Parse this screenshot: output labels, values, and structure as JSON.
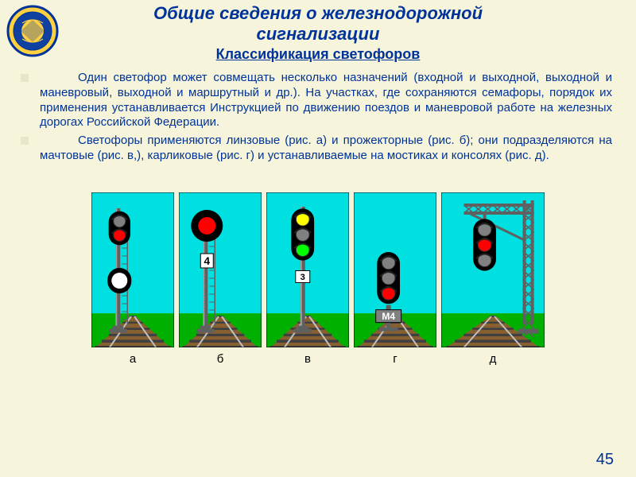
{
  "title_line1": "Общие сведения о железнодорожной",
  "title_line2": "сигнализации",
  "subtitle": "Классификация светофоров",
  "paragraph1": "Один светофор может совмещать несколько назначений (входной и выходной, выходной и маневровый, выходной и маршрутный и др.). На участках, где сохраняются семафоры, порядок их применения устанавливается Инструкцией по движению поездов и маневровой работе на железных дорогах Российской Федерации.",
  "paragraph2": "Светофоры применяются линзовые (рис. а) и прожекторные (рис. б); они подразделяются на мачтовые (рис. в,), карликовые (рис. г) и устанавливаемые на мостиках и консолях (рис. д).",
  "figures": [
    {
      "label": "а"
    },
    {
      "label": "б"
    },
    {
      "label": "в"
    },
    {
      "label": "г"
    },
    {
      "label": "д"
    }
  ],
  "page_number": "45",
  "style": {
    "fig_width": 104,
    "fig_height": 195,
    "last_fig_width": 130,
    "sky": "#00e0e0",
    "ground": "#00b000",
    "track_bed": "#886030",
    "rail": "#c0c0c0",
    "sleeper": "#404040",
    "post": "#606060",
    "post_light": "#a0a0a0",
    "head_black": "#000000",
    "red": "#ff0000",
    "yellow": "#ffff00",
    "green": "#00ff00",
    "white": "#ffffff",
    "grey_lens": "#808080",
    "blue_lens": "#3030ff",
    "plate_white": "#ffffff",
    "plate_text": "#000000",
    "plate_m4_bg": "#808080",
    "plate_m4_text": "#ffffff"
  }
}
